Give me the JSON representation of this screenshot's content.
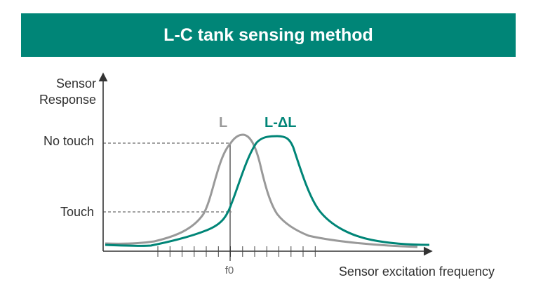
{
  "title": "L-C tank sensing method",
  "y_axis_label": [
    "Sensor",
    "Response"
  ],
  "x_axis_label": "Sensor excitation frequency",
  "levels": {
    "no_touch": "No touch",
    "touch": "Touch"
  },
  "tick_label": "f0",
  "curves": [
    {
      "label": "L",
      "color": "#999999"
    },
    {
      "label": "L-ΔL",
      "color": "#008577"
    }
  ],
  "colors": {
    "brand": "#008577",
    "axis": "#333333",
    "guide": "#444444"
  }
}
